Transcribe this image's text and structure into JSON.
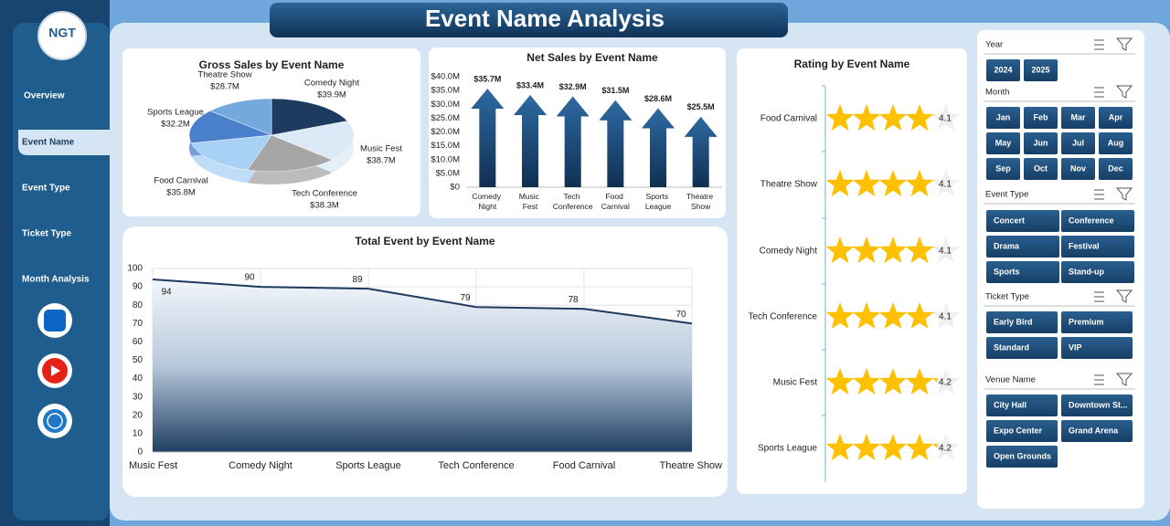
{
  "title": "Event Name Analysis",
  "logo": "NGT",
  "nav": [
    "Overview",
    "Event Name",
    "Event Type",
    "Ticket Type",
    "Month Analysis"
  ],
  "chart_data": [
    {
      "type": "pie",
      "title": "Gross Sales by Event Name",
      "categories": [
        "Comedy Night",
        "Music Fest",
        "Tech Conference",
        "Food Carnival",
        "Sports League",
        "Theatre Show"
      ],
      "values": [
        39900000,
        38700000,
        38300000,
        35800000,
        32200000,
        28700000
      ],
      "value_labels": [
        "$39.9M",
        "$38.7M",
        "$38.3M",
        "$35.8M",
        "$32.2M",
        "$28.7M"
      ],
      "colors": [
        "#1d3b5e",
        "#dce9f6",
        "#a6a6a6",
        "#a9d1f5",
        "#4a7fcb",
        "#73a9dd"
      ]
    },
    {
      "type": "bar",
      "title": "Net Sales by Event Name",
      "categories": [
        "Comedy Night",
        "Music Fest",
        "Tech Conference",
        "Food Carnival",
        "Sports League",
        "Theatre Show"
      ],
      "values": [
        35700000,
        33400000,
        32900000,
        31500000,
        28600000,
        25500000
      ],
      "value_labels": [
        "$35.7M",
        "$33.4M",
        "$32.9M",
        "$31.5M",
        "$28.6M",
        "$25.5M"
      ],
      "color": "#1f4e79",
      "ylim": [
        0,
        40000000
      ],
      "yticks": [
        {
          "value": 0,
          "label": "$0"
        },
        {
          "value": 5000000,
          "label": "$5.0M"
        },
        {
          "value": 10000000,
          "label": "$10.0M"
        },
        {
          "value": 15000000,
          "label": "$15.0M"
        },
        {
          "value": 20000000,
          "label": "$20.0M"
        },
        {
          "value": 25000000,
          "label": "$25.0M"
        },
        {
          "value": 30000000,
          "label": "$30.0M"
        },
        {
          "value": 35000000,
          "label": "$35.0M"
        },
        {
          "value": 40000000,
          "label": "$40.0M"
        }
      ]
    },
    {
      "type": "area",
      "title": "Total Event by Event Name",
      "categories": [
        "Music Fest",
        "Comedy Night",
        "Sports League",
        "Tech Conference",
        "Food Carnival",
        "Theatre Show"
      ],
      "values": [
        94,
        90,
        89,
        79,
        78,
        70
      ],
      "color": "#1f3a5f",
      "ylim": [
        0,
        100
      ],
      "yticks": [
        0,
        10,
        20,
        30,
        40,
        50,
        60,
        70,
        80,
        90,
        100
      ],
      "grid": true
    },
    {
      "type": "rating",
      "title": "Rating by Event Name",
      "categories": [
        "Food Carnival",
        "Theatre Show",
        "Comedy Night",
        "Tech Conference",
        "Music Fest",
        "Sports League"
      ],
      "values": [
        4.1,
        4.1,
        4.1,
        4.1,
        4.2,
        4.2
      ],
      "xlim": [
        0,
        5
      ],
      "color": "#ffc000"
    }
  ],
  "slicers": [
    {
      "title": "Year",
      "items": [
        "2024",
        "2025"
      ]
    },
    {
      "title": "Month",
      "items": [
        "Jan",
        "Feb",
        "Mar",
        "Apr",
        "May",
        "Jun",
        "Jul",
        "Aug",
        "Sep",
        "Oct",
        "Nov",
        "Dec"
      ]
    },
    {
      "title": "Event Type",
      "items": [
        "Concert",
        "Conference",
        "Drama",
        "Festival",
        "Sports",
        "Stand-up"
      ]
    },
    {
      "title": "Ticket Type",
      "items": [
        "Early Bird",
        "Premium",
        "Standard",
        "VIP"
      ]
    },
    {
      "title": "Venue Name",
      "items": [
        "City Hall",
        "Downtown St...",
        "Expo Center",
        "Grand Arena",
        "Open Grounds"
      ]
    }
  ]
}
